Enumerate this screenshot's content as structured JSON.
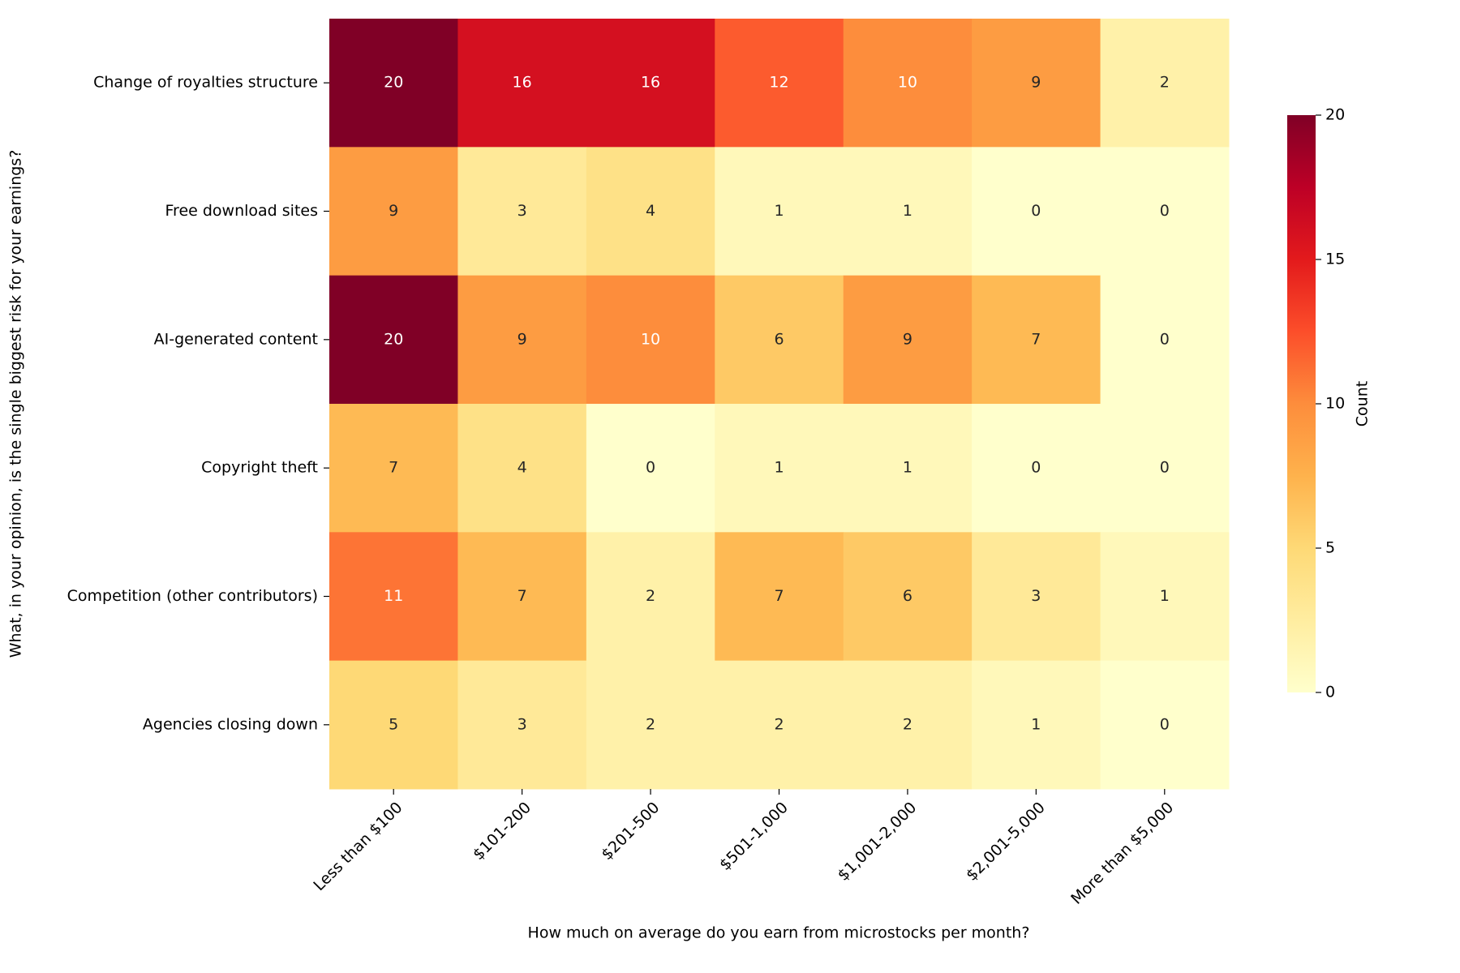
{
  "chart_data": {
    "type": "heatmap",
    "x_categories": [
      "Less than $100",
      "$101-200",
      "$201-500",
      "$501-1,000",
      "$1,001-2,000",
      "$2,001-5,000",
      "More than $5,000"
    ],
    "y_categories": [
      "Change of royalties structure",
      "Free download sites",
      "AI-generated content",
      "Copyright theft",
      "Competition (other contributors)",
      "Agencies closing down"
    ],
    "values": [
      [
        20,
        16,
        16,
        12,
        10,
        9,
        2
      ],
      [
        9,
        3,
        4,
        1,
        1,
        0,
        0
      ],
      [
        20,
        9,
        10,
        6,
        9,
        7,
        0
      ],
      [
        7,
        4,
        0,
        1,
        1,
        0,
        0
      ],
      [
        11,
        7,
        2,
        7,
        6,
        3,
        1
      ],
      [
        5,
        3,
        2,
        2,
        2,
        1,
        0
      ]
    ],
    "x_label": "How much on average do you earn from microstocks per month?",
    "y_label": "What, in your opinion, is the single biggest risk for your earnings?",
    "colorbar_label": "Count",
    "clim": [
      0,
      20
    ],
    "colorbar_ticks": [
      0,
      5,
      10,
      15,
      20
    ],
    "colormap": [
      "#ffffcc",
      "#ffeda0",
      "#fed976",
      "#feb24c",
      "#fd8d3c",
      "#fc4e2a",
      "#e31a1c",
      "#bd0026",
      "#800026"
    ]
  }
}
